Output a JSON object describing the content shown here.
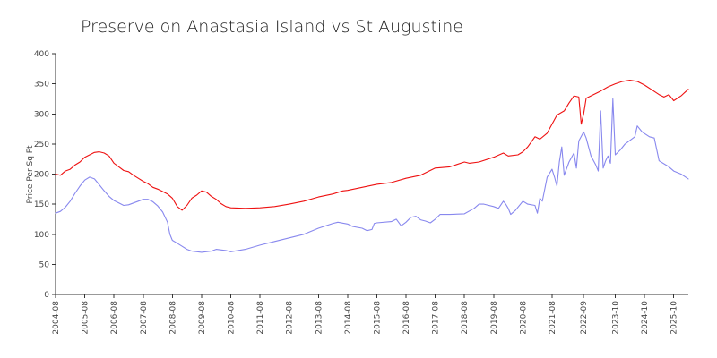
{
  "chart_data": {
    "type": "line",
    "title": "Preserve on Anastasia Island vs St Augustine",
    "xlabel": "",
    "ylabel": "Price Per Sq Ft",
    "ylim": [
      0,
      400
    ],
    "yticks": [
      0,
      50,
      100,
      150,
      200,
      250,
      300,
      350,
      400
    ],
    "xlim": [
      "2004-08",
      "2026-04"
    ],
    "xticks": [
      "2004-08",
      "2005-08",
      "2006-08",
      "2007-08",
      "2008-08",
      "2009-08",
      "2010-08",
      "2011-08",
      "2012-08",
      "2013-08",
      "2014-08",
      "2015-08",
      "2016-08",
      "2017-08",
      "2018-08",
      "2019-08",
      "2020-08",
      "2021-08",
      "2022-09",
      "2023-10",
      "2024-10",
      "2025-10"
    ],
    "grid": false,
    "legend": "none",
    "colors": [
      "#ee1111",
      "#8888ee"
    ],
    "series": [
      {
        "points": [
          [
            "2004-08",
            200
          ],
          [
            "2004-10",
            198
          ],
          [
            "2004-12",
            205
          ],
          [
            "2005-02",
            208
          ],
          [
            "2005-04",
            215
          ],
          [
            "2005-06",
            220
          ],
          [
            "2005-08",
            228
          ],
          [
            "2005-10",
            232
          ],
          [
            "2005-12",
            236
          ],
          [
            "2006-02",
            237
          ],
          [
            "2006-04",
            235
          ],
          [
            "2006-06",
            230
          ],
          [
            "2006-08",
            218
          ],
          [
            "2006-10",
            212
          ],
          [
            "2006-12",
            206
          ],
          [
            "2007-02",
            204
          ],
          [
            "2007-04",
            198
          ],
          [
            "2007-06",
            193
          ],
          [
            "2007-08",
            188
          ],
          [
            "2007-10",
            184
          ],
          [
            "2007-12",
            178
          ],
          [
            "2008-02",
            175
          ],
          [
            "2008-04",
            171
          ],
          [
            "2008-06",
            167
          ],
          [
            "2008-08",
            160
          ],
          [
            "2008-10",
            146
          ],
          [
            "2008-12",
            140
          ],
          [
            "2009-02",
            148
          ],
          [
            "2009-04",
            160
          ],
          [
            "2009-06",
            165
          ],
          [
            "2009-08",
            172
          ],
          [
            "2009-10",
            170
          ],
          [
            "2009-12",
            163
          ],
          [
            "2010-02",
            158
          ],
          [
            "2010-04",
            151
          ],
          [
            "2010-06",
            146
          ],
          [
            "2010-08",
            144
          ],
          [
            "2011-02",
            143
          ],
          [
            "2011-08",
            144
          ],
          [
            "2012-02",
            146
          ],
          [
            "2012-08",
            150
          ],
          [
            "2013-02",
            155
          ],
          [
            "2013-08",
            162
          ],
          [
            "2014-02",
            167
          ],
          [
            "2014-06",
            172
          ],
          [
            "2014-08",
            173
          ],
          [
            "2015-02",
            178
          ],
          [
            "2015-08",
            183
          ],
          [
            "2016-02",
            186
          ],
          [
            "2016-08",
            193
          ],
          [
            "2017-02",
            198
          ],
          [
            "2017-08",
            210
          ],
          [
            "2018-02",
            212
          ],
          [
            "2018-08",
            220
          ],
          [
            "2018-10",
            218
          ],
          [
            "2019-02",
            220
          ],
          [
            "2019-08",
            228
          ],
          [
            "2019-12",
            235
          ],
          [
            "2020-02",
            230
          ],
          [
            "2020-06",
            232
          ],
          [
            "2020-08",
            237
          ],
          [
            "2020-10",
            245
          ],
          [
            "2021-01",
            262
          ],
          [
            "2021-03",
            258
          ],
          [
            "2021-06",
            268
          ],
          [
            "2021-08",
            283
          ],
          [
            "2021-10",
            298
          ],
          [
            "2022-01",
            305
          ],
          [
            "2022-03",
            318
          ],
          [
            "2022-05",
            330
          ],
          [
            "2022-07",
            328
          ],
          [
            "2022-08",
            283
          ],
          [
            "2022-09",
            300
          ],
          [
            "2022-10",
            326
          ],
          [
            "2023-01",
            332
          ],
          [
            "2023-04",
            338
          ],
          [
            "2023-07",
            345
          ],
          [
            "2023-10",
            350
          ],
          [
            "2024-01",
            354
          ],
          [
            "2024-04",
            356
          ],
          [
            "2024-07",
            354
          ],
          [
            "2024-10",
            348
          ],
          [
            "2025-01",
            340
          ],
          [
            "2025-04",
            332
          ],
          [
            "2025-06",
            328
          ],
          [
            "2025-08",
            332
          ],
          [
            "2025-10",
            322
          ],
          [
            "2026-01",
            330
          ],
          [
            "2026-04",
            341
          ]
        ]
      },
      {
        "points": [
          [
            "2004-08",
            135
          ],
          [
            "2004-10",
            138
          ],
          [
            "2004-12",
            145
          ],
          [
            "2005-02",
            155
          ],
          [
            "2005-04",
            168
          ],
          [
            "2005-06",
            180
          ],
          [
            "2005-08",
            190
          ],
          [
            "2005-10",
            195
          ],
          [
            "2005-12",
            192
          ],
          [
            "2006-02",
            182
          ],
          [
            "2006-04",
            172
          ],
          [
            "2006-06",
            163
          ],
          [
            "2006-08",
            156
          ],
          [
            "2006-10",
            152
          ],
          [
            "2006-12",
            148
          ],
          [
            "2007-02",
            149
          ],
          [
            "2007-04",
            152
          ],
          [
            "2007-06",
            155
          ],
          [
            "2007-08",
            158
          ],
          [
            "2007-10",
            158
          ],
          [
            "2007-12",
            154
          ],
          [
            "2008-02",
            147
          ],
          [
            "2008-04",
            137
          ],
          [
            "2008-06",
            120
          ],
          [
            "2008-07",
            100
          ],
          [
            "2008-08",
            90
          ],
          [
            "2008-10",
            85
          ],
          [
            "2008-12",
            80
          ],
          [
            "2009-02",
            75
          ],
          [
            "2009-04",
            72
          ],
          [
            "2009-08",
            70
          ],
          [
            "2009-12",
            72
          ],
          [
            "2010-02",
            75
          ],
          [
            "2010-06",
            73
          ],
          [
            "2010-08",
            71
          ],
          [
            "2011-02",
            75
          ],
          [
            "2011-08",
            82
          ],
          [
            "2012-02",
            88
          ],
          [
            "2012-08",
            94
          ],
          [
            "2013-02",
            100
          ],
          [
            "2013-08",
            110
          ],
          [
            "2014-02",
            118
          ],
          [
            "2014-04",
            120
          ],
          [
            "2014-08",
            117
          ],
          [
            "2014-10",
            113
          ],
          [
            "2015-02",
            110
          ],
          [
            "2015-04",
            106
          ],
          [
            "2015-06",
            108
          ],
          [
            "2015-07",
            118
          ],
          [
            "2015-08",
            119
          ],
          [
            "2016-02",
            121
          ],
          [
            "2016-04",
            125
          ],
          [
            "2016-06",
            114
          ],
          [
            "2016-08",
            120
          ],
          [
            "2016-10",
            128
          ],
          [
            "2016-12",
            130
          ],
          [
            "2017-02",
            124
          ],
          [
            "2017-04",
            122
          ],
          [
            "2017-06",
            119
          ],
          [
            "2017-08",
            125
          ],
          [
            "2017-10",
            133
          ],
          [
            "2018-02",
            133
          ],
          [
            "2018-08",
            134
          ],
          [
            "2018-12",
            143
          ],
          [
            "2019-02",
            150
          ],
          [
            "2019-04",
            150
          ],
          [
            "2019-08",
            146
          ],
          [
            "2019-10",
            143
          ],
          [
            "2019-12",
            155
          ],
          [
            "2020-01",
            150
          ],
          [
            "2020-02",
            143
          ],
          [
            "2020-03",
            133
          ],
          [
            "2020-05",
            140
          ],
          [
            "2020-08",
            155
          ],
          [
            "2020-10",
            150
          ],
          [
            "2021-01",
            148
          ],
          [
            "2021-02",
            135
          ],
          [
            "2021-03",
            160
          ],
          [
            "2021-04",
            155
          ],
          [
            "2021-06",
            195
          ],
          [
            "2021-08",
            208
          ],
          [
            "2021-09",
            195
          ],
          [
            "2021-10",
            180
          ],
          [
            "2021-11",
            220
          ],
          [
            "2021-12",
            245
          ],
          [
            "2022-01",
            198
          ],
          [
            "2022-03",
            220
          ],
          [
            "2022-05",
            235
          ],
          [
            "2022-06",
            210
          ],
          [
            "2022-07",
            255
          ],
          [
            "2022-09",
            270
          ],
          [
            "2022-10",
            260
          ],
          [
            "2022-12",
            230
          ],
          [
            "2023-02",
            215
          ],
          [
            "2023-03",
            205
          ],
          [
            "2023-04",
            305
          ],
          [
            "2023-05",
            210
          ],
          [
            "2023-06",
            222
          ],
          [
            "2023-07",
            230
          ],
          [
            "2023-08",
            218
          ],
          [
            "2023-09",
            325
          ],
          [
            "2023-10",
            232
          ],
          [
            "2023-12",
            240
          ],
          [
            "2024-02",
            250
          ],
          [
            "2024-06",
            262
          ],
          [
            "2024-07",
            280
          ],
          [
            "2024-09",
            270
          ],
          [
            "2024-12",
            262
          ],
          [
            "2025-02",
            260
          ],
          [
            "2025-04",
            222
          ],
          [
            "2025-08",
            212
          ],
          [
            "2025-10",
            205
          ],
          [
            "2026-01",
            200
          ],
          [
            "2026-04",
            192
          ]
        ]
      }
    ]
  }
}
